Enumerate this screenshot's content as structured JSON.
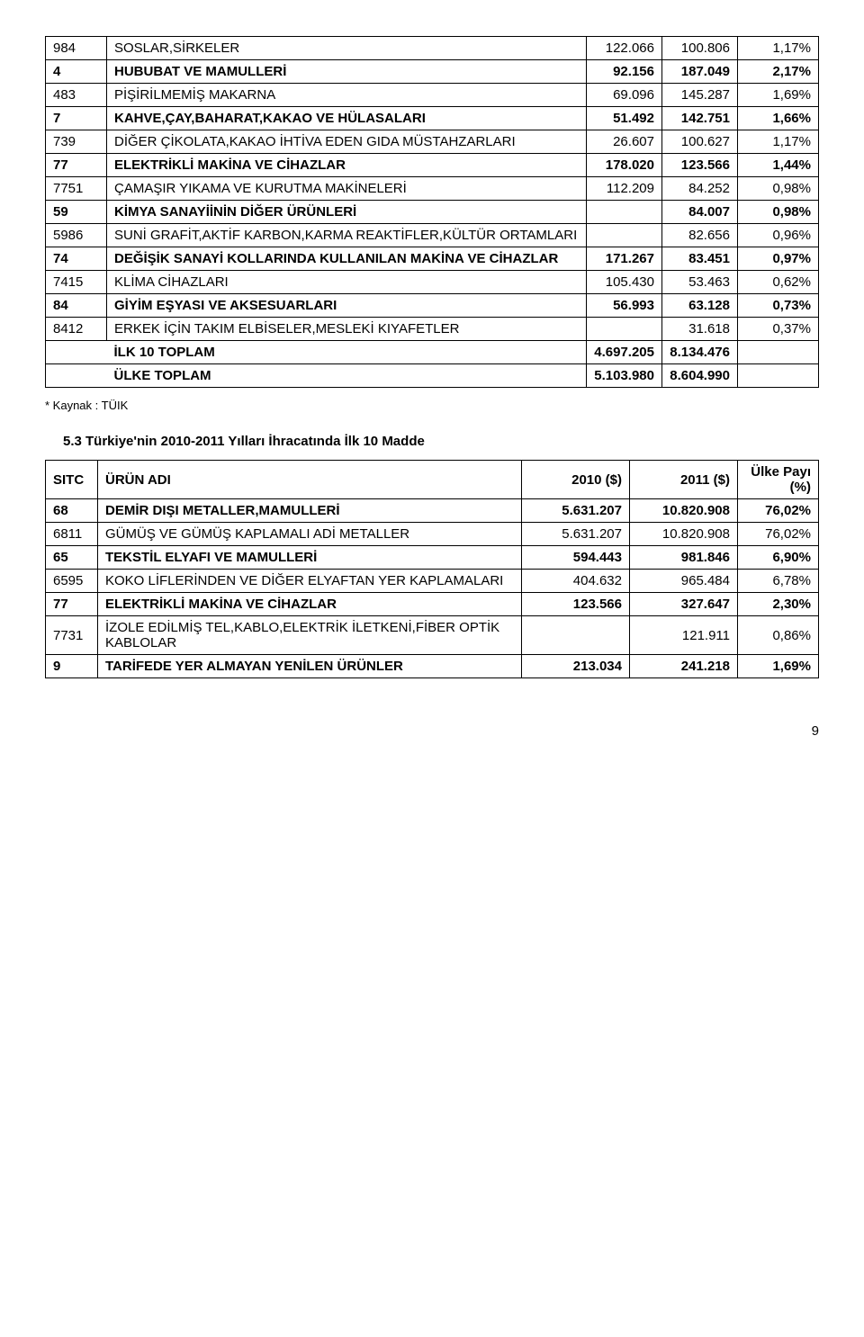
{
  "table1": {
    "rows": [
      {
        "code": "984",
        "name": "SOSLAR,SİRKELER",
        "v1": "122.066",
        "v2": "100.806",
        "pct": "1,17%",
        "bold": false
      },
      {
        "code": "4",
        "name": "HUBUBAT VE MAMULLERİ",
        "v1": "92.156",
        "v2": "187.049",
        "pct": "2,17%",
        "bold": true
      },
      {
        "code": "483",
        "name": "PİŞİRİLMEMİŞ MAKARNA",
        "v1": "69.096",
        "v2": "145.287",
        "pct": "1,69%",
        "bold": false
      },
      {
        "code": "7",
        "name": "KAHVE,ÇAY,BAHARAT,KAKAO VE HÜLASALARI",
        "v1": "51.492",
        "v2": "142.751",
        "pct": "1,66%",
        "bold": true
      },
      {
        "code": "739",
        "name": "DİĞER ÇİKOLATA,KAKAO İHTİVA EDEN GIDA MÜSTAHZARLARI",
        "v1": "26.607",
        "v2": "100.627",
        "pct": "1,17%",
        "bold": false
      },
      {
        "code": "77",
        "name": "ELEKTRİKLİ MAKİNA VE CİHAZLAR",
        "v1": "178.020",
        "v2": "123.566",
        "pct": "1,44%",
        "bold": true
      },
      {
        "code": "7751",
        "name": "ÇAMAŞIR YIKAMA VE KURUTMA MAKİNELERİ",
        "v1": "112.209",
        "v2": "84.252",
        "pct": "0,98%",
        "bold": false
      },
      {
        "code": "59",
        "name": "KİMYA SANAYİİNİN DİĞER ÜRÜNLERİ",
        "v1": "",
        "v2": "84.007",
        "pct": "0,98%",
        "bold": true
      },
      {
        "code": "5986",
        "name": "SUNİ GRAFİT,AKTİF KARBON,KARMA REAKTİFLER,KÜLTÜR ORTAMLARI",
        "v1": "",
        "v2": "82.656",
        "pct": "0,96%",
        "bold": false
      },
      {
        "code": "74",
        "name": "DEĞİŞİK SANAYİ KOLLARINDA KULLANILAN MAKİNA VE CİHAZLAR",
        "v1": "171.267",
        "v2": "83.451",
        "pct": "0,97%",
        "bold": true
      },
      {
        "code": "7415",
        "name": "KLİMA CİHAZLARI",
        "v1": "105.430",
        "v2": "53.463",
        "pct": "0,62%",
        "bold": false
      },
      {
        "code": "84",
        "name": "GİYİM EŞYASI VE AKSESUARLARI",
        "v1": "56.993",
        "v2": "63.128",
        "pct": "0,73%",
        "bold": true
      },
      {
        "code": "8412",
        "name": "ERKEK İÇİN TAKIM ELBİSELER,MESLEKİ KIYAFETLER",
        "v1": "",
        "v2": "31.618",
        "pct": "0,37%",
        "bold": false
      }
    ],
    "totals": [
      {
        "label": "İLK 10 TOPLAM",
        "v1": "4.697.205",
        "v2": "8.134.476",
        "pct": ""
      },
      {
        "label": "ÜLKE TOPLAM",
        "v1": "5.103.980",
        "v2": "8.604.990",
        "pct": ""
      }
    ],
    "footnote": "* Kaynak : TÜIK"
  },
  "section_title": "5.3 Türkiye'nin 2010-2011 Yılları İhracatında İlk 10 Madde",
  "table2": {
    "header": {
      "c1": "SITC",
      "c2": "ÜRÜN ADI",
      "c3": "2010 ($)",
      "c4": "2011 ($)",
      "c5": "Ülke Payı (%)"
    },
    "rows": [
      {
        "code": "68",
        "name": "DEMİR DIŞI METALLER,MAMULLERİ",
        "v1": "5.631.207",
        "v2": "10.820.908",
        "pct": "76,02%",
        "bold": true
      },
      {
        "code": "6811",
        "name": "GÜMÜŞ VE GÜMÜŞ KAPLAMALI ADİ METALLER",
        "v1": "5.631.207",
        "v2": "10.820.908",
        "pct": "76,02%",
        "bold": false
      },
      {
        "code": "65",
        "name": "TEKSTİL ELYAFI VE MAMULLERİ",
        "v1": "594.443",
        "v2": "981.846",
        "pct": "6,90%",
        "bold": true
      },
      {
        "code": "6595",
        "name": "KOKO LİFLERİNDEN VE DİĞER ELYAFTAN YER KAPLAMALARI",
        "v1": "404.632",
        "v2": "965.484",
        "pct": "6,78%",
        "bold": false
      },
      {
        "code": "77",
        "name": "ELEKTRİKLİ MAKİNA VE CİHAZLAR",
        "v1": "123.566",
        "v2": "327.647",
        "pct": "2,30%",
        "bold": true
      },
      {
        "code": "7731",
        "name": "İZOLE EDİLMİŞ TEL,KABLO,ELEKTRİK İLETKENİ,FİBER OPTİK KABLOLAR",
        "v1": "",
        "v2": "121.911",
        "pct": "0,86%",
        "bold": false
      },
      {
        "code": "9",
        "name": "TARİFEDE YER ALMAYAN YENİLEN ÜRÜNLER",
        "v1": "213.034",
        "v2": "241.218",
        "pct": "1,69%",
        "bold": true
      }
    ]
  },
  "page_number": "9"
}
